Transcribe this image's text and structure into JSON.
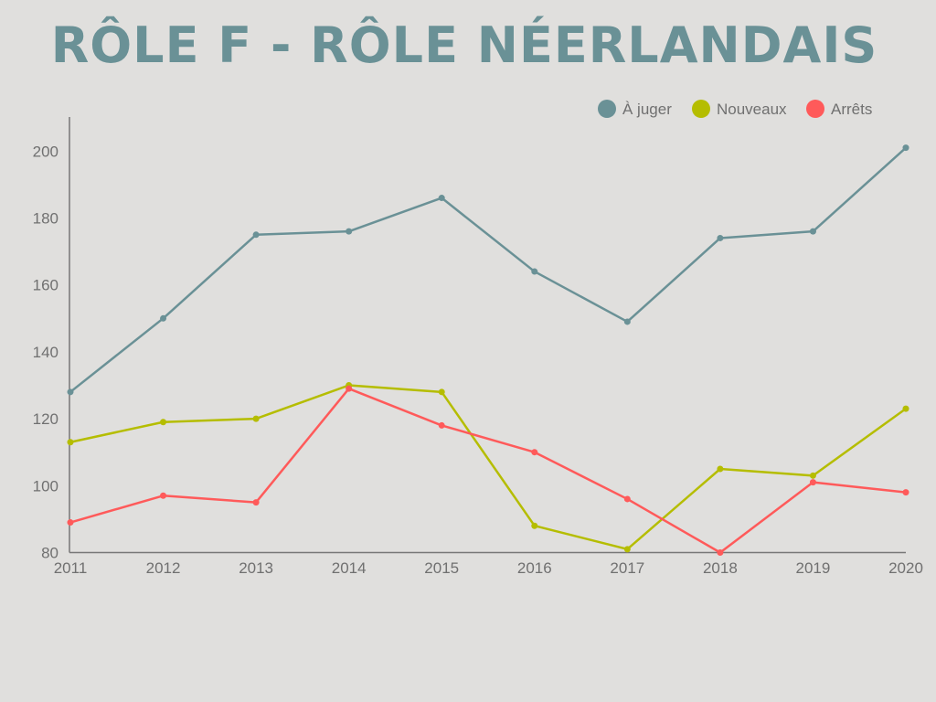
{
  "chart_data": {
    "type": "line",
    "title": "RÔLE F - RÔLE NÉERLANDAIS",
    "xlabel": "",
    "ylabel": "",
    "x": [
      "2011",
      "2012",
      "2013",
      "2014",
      "2015",
      "2016",
      "2017",
      "2018",
      "2019",
      "2020"
    ],
    "ylim": [
      80,
      210
    ],
    "yticks": [
      80,
      100,
      120,
      140,
      160,
      180,
      200
    ],
    "grid": false,
    "legend_position": "top-right",
    "series": [
      {
        "name": "À juger",
        "color": "#6a9196",
        "values": [
          128,
          150,
          175,
          176,
          186,
          164,
          149,
          174,
          176,
          201
        ]
      },
      {
        "name": "Nouveaux",
        "color": "#b5bd00",
        "values": [
          113,
          119,
          120,
          130,
          128,
          88,
          81,
          105,
          103,
          123
        ]
      },
      {
        "name": "Arrêts",
        "color": "#ff5a5a",
        "values": [
          89,
          97,
          95,
          129,
          118,
          110,
          96,
          80,
          101,
          98
        ]
      }
    ]
  }
}
